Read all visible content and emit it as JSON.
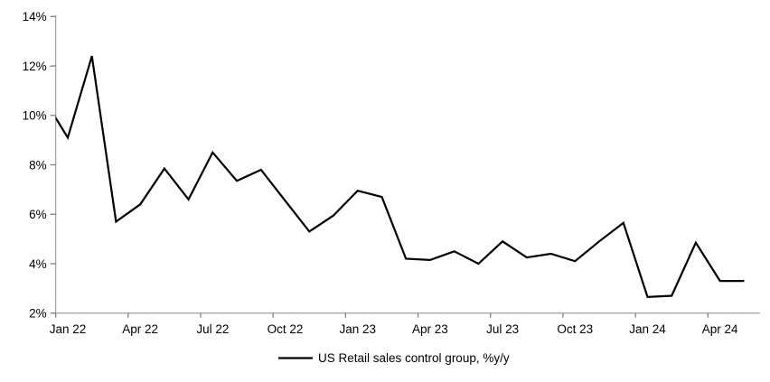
{
  "chart_data": {
    "type": "line",
    "title": "",
    "legend_label": "US Retail sales control group, %y/y",
    "legend_position": "bottom-center",
    "x": [
      "Dec 21",
      "Jan 22",
      "Feb 22",
      "Mar 22",
      "Apr 22",
      "May 22",
      "Jun 22",
      "Jul 22",
      "Aug 22",
      "Sep 22",
      "Oct 22",
      "Nov 22",
      "Dec 22",
      "Jan 23",
      "Feb 23",
      "Mar 23",
      "Apr 23",
      "May 23",
      "Jun 23",
      "Jul 23",
      "Aug 23",
      "Sep 23",
      "Oct 23",
      "Nov 23",
      "Dec 23",
      "Jan 24",
      "Feb 24",
      "Mar 24",
      "Apr 24",
      "May 24"
    ],
    "series": [
      {
        "name": "US Retail sales control group, %y/y",
        "color": "#000000",
        "values": [
          10.7,
          9.1,
          12.4,
          5.7,
          6.4,
          7.85,
          6.6,
          8.5,
          7.35,
          7.8,
          6.55,
          5.3,
          5.95,
          6.95,
          6.7,
          4.2,
          4.15,
          4.5,
          4.0,
          4.9,
          4.25,
          4.4,
          4.1,
          4.9,
          5.65,
          2.65,
          2.7,
          4.85,
          3.3,
          3.3
        ]
      }
    ],
    "ylim": [
      2,
      14
    ],
    "ytick_values": [
      2,
      4,
      6,
      8,
      10,
      12,
      14
    ],
    "ytick_labels": [
      "2%",
      "4%",
      "6%",
      "8%",
      "10%",
      "12%",
      "14%"
    ],
    "xtick_labels": [
      "Jan 22",
      "Apr 22",
      "Jul 22",
      "Oct 22",
      "Jan 23",
      "Apr 23",
      "Jul 23",
      "Oct 23",
      "Jan 24",
      "Apr 24"
    ],
    "xtick_month_index": [
      1,
      4,
      7,
      10,
      13,
      16,
      19,
      22,
      25,
      28
    ],
    "grid": false,
    "first_point_clipped_at_left_edge": true,
    "colors": {
      "series": "#000000",
      "axis_line": "#a6a6a6",
      "tick_mark": "#808080",
      "text": "#000000",
      "background": "#ffffff"
    }
  }
}
